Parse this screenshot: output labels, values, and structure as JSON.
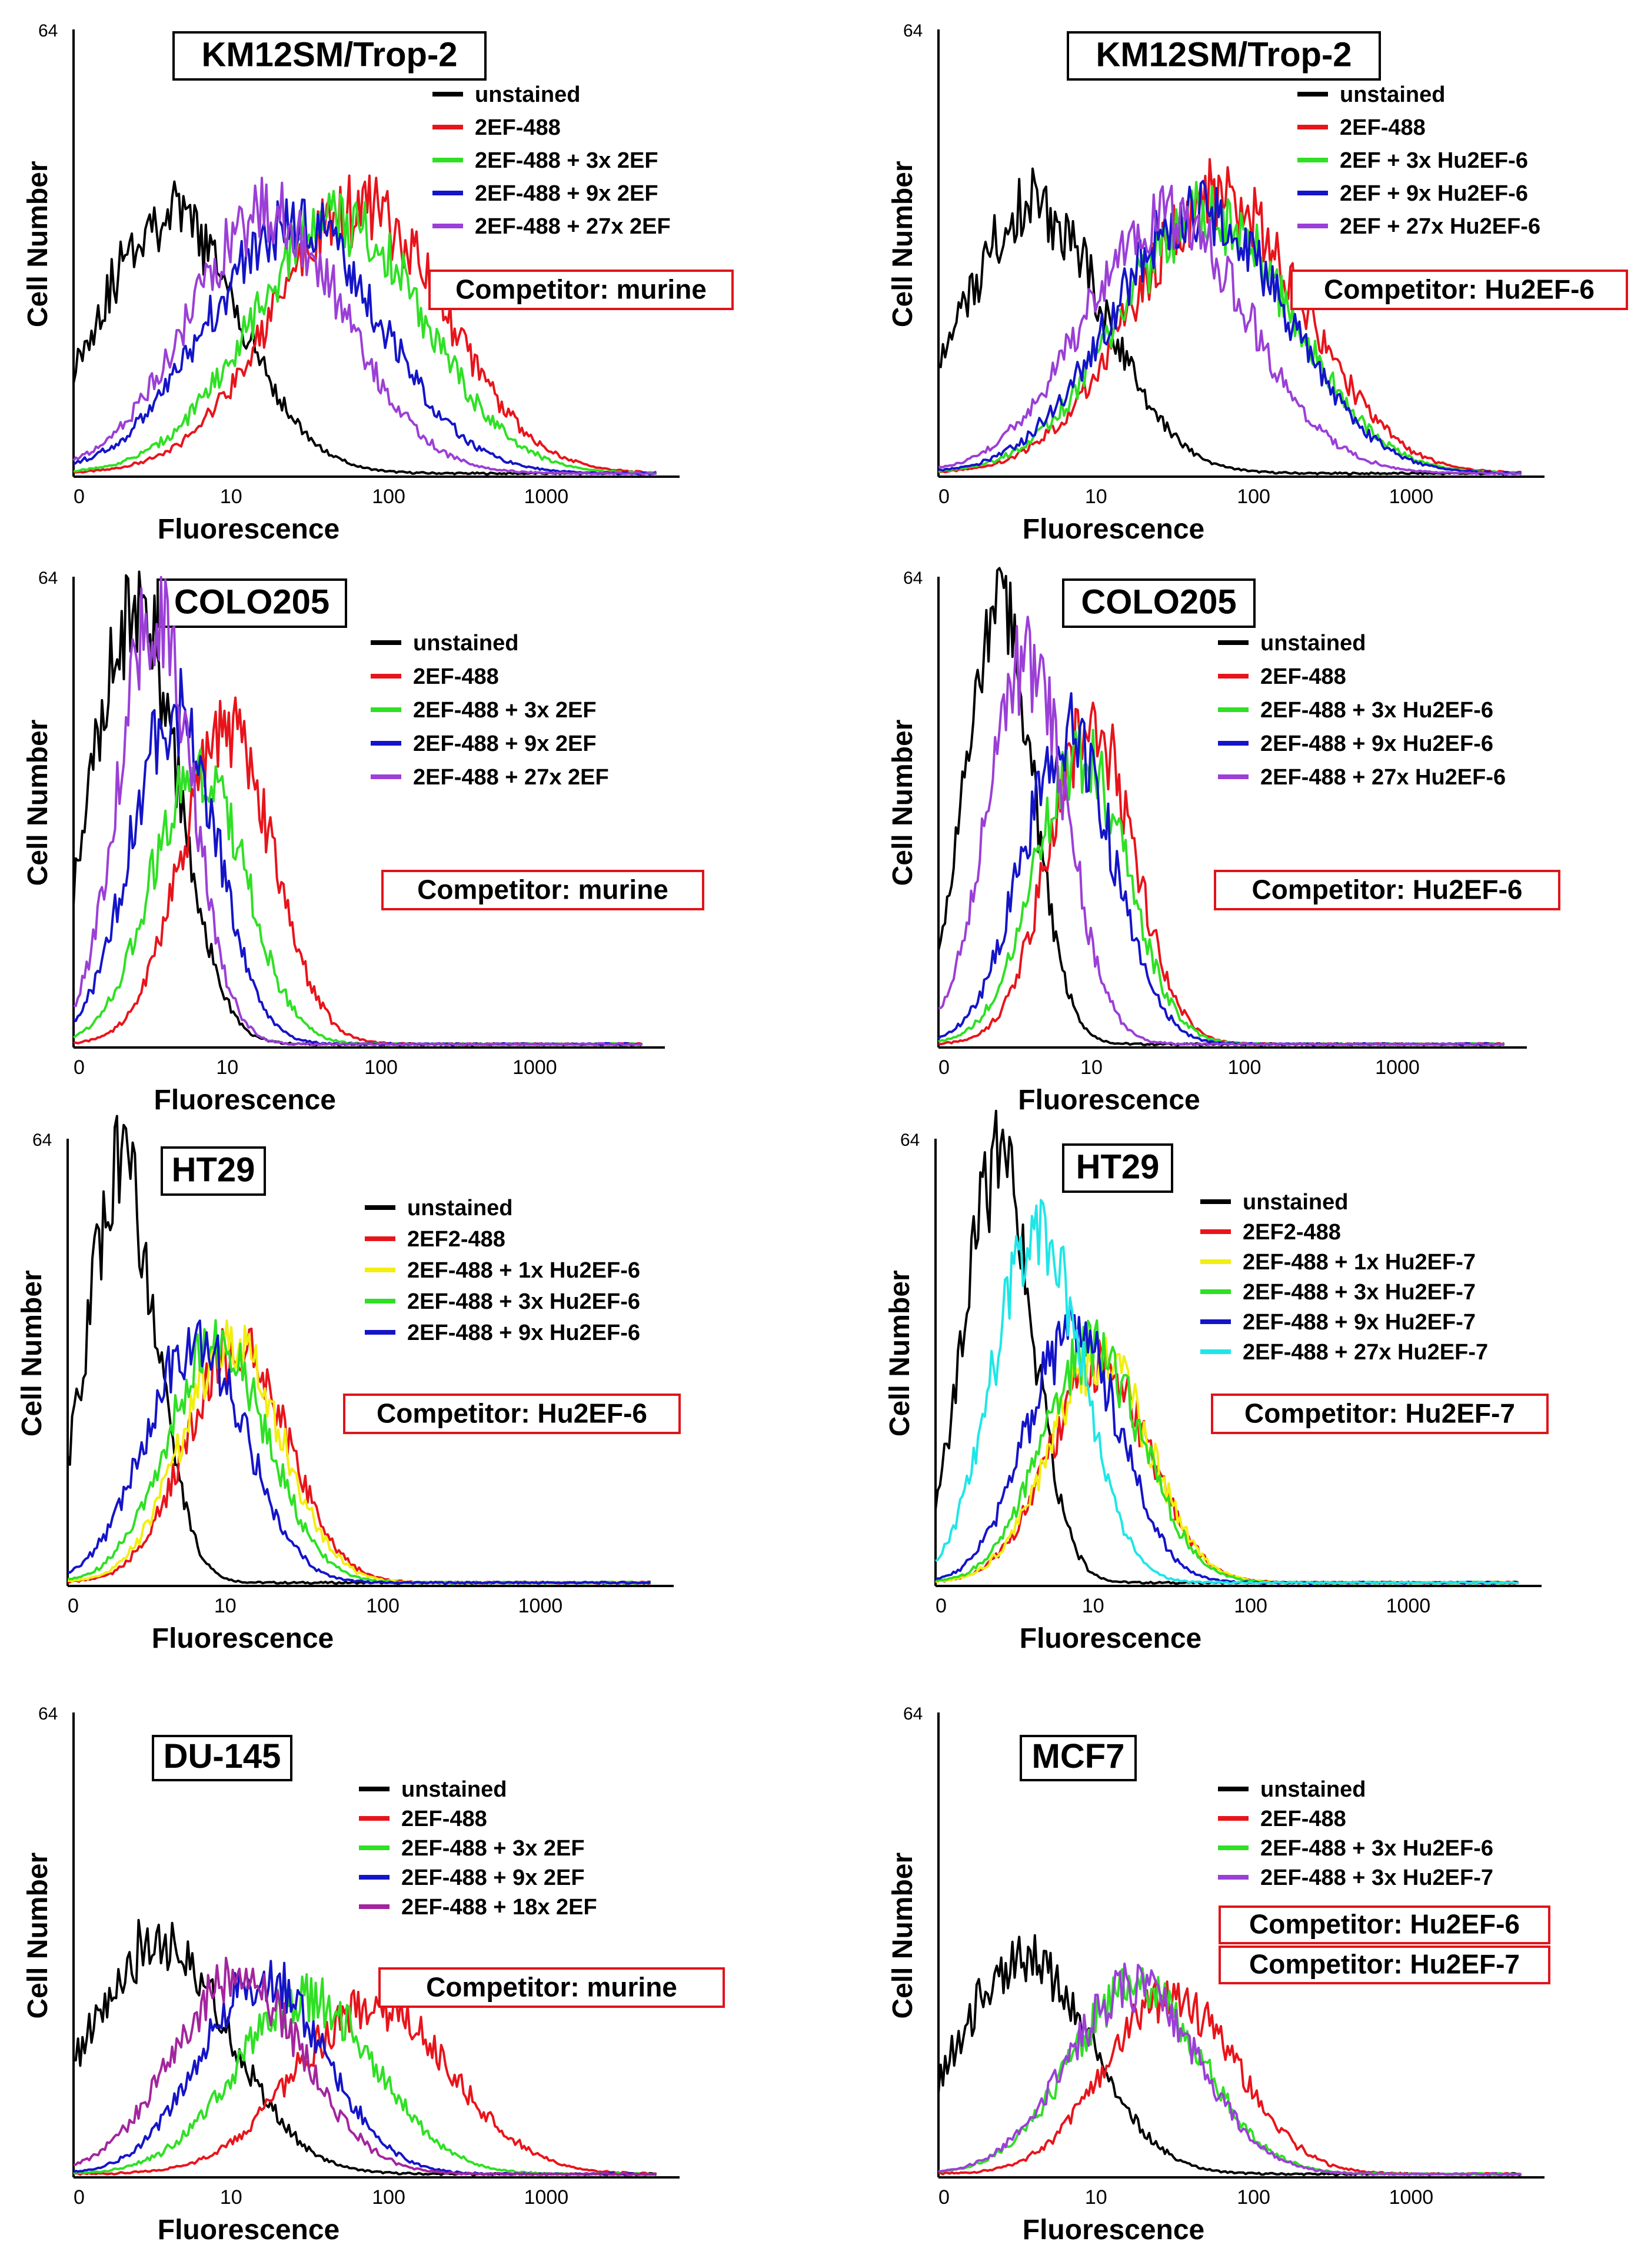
{
  "figure": {
    "shared_axis": {
      "ylabel": "Cell Number",
      "xlabel": "Fluorescence",
      "ymax_label": "64",
      "xticks": [
        "0",
        "10",
        "100",
        "1000"
      ]
    }
  },
  "colors": {
    "unstained": "#000000",
    "red": "#e8141b",
    "green": "#2fe024",
    "blue": "#1414c8",
    "purple": "#9b3fd6",
    "yellow": "#f2ee10",
    "cyan": "#1fe6e6",
    "competitor_box_border": "#e0141b"
  },
  "chart_data": [
    {
      "type": "line",
      "title": "KM12SM/Trop-2",
      "competitor": [
        "Competitor: murine"
      ],
      "xlabel": "Fluorescence",
      "ylabel": "Cell Number",
      "x_scale": "log",
      "xlim": [
        1,
        5000
      ],
      "ylim": [
        0,
        64
      ],
      "series": [
        {
          "name": "unstained",
          "color": "#000000",
          "peak": 4,
          "height": 0.58,
          "width": 0.45
        },
        {
          "name": "2EF-488",
          "color": "#e8141b",
          "peak": 65,
          "height": 0.59,
          "width": 0.55
        },
        {
          "name": "2EF-488 + 3x 2EF",
          "color": "#2fe024",
          "peak": 48,
          "height": 0.57,
          "width": 0.55
        },
        {
          "name": "2EF-488 + 9x 2EF",
          "color": "#1414c8",
          "peak": 25,
          "height": 0.56,
          "width": 0.55
        },
        {
          "name": "2EF-488 + 27x 2EF",
          "color": "#9b3fd6",
          "peak": 17,
          "height": 0.58,
          "width": 0.5
        }
      ]
    },
    {
      "type": "line",
      "title": "KM12SM/Trop-2",
      "competitor": [
        "Competitor: Hu2EF-6"
      ],
      "xlabel": "Fluorescence",
      "ylabel": "Cell Number",
      "x_scale": "log",
      "xlim": [
        1,
        5000
      ],
      "ylim": [
        0,
        64
      ],
      "series": [
        {
          "name": "unstained",
          "color": "#000000",
          "peak": 4,
          "height": 0.6,
          "width": 0.45
        },
        {
          "name": "2EF-488",
          "color": "#e8141b",
          "peak": 60,
          "height": 0.62,
          "width": 0.55
        },
        {
          "name": "2EF + 3x Hu2EF-6",
          "color": "#2fe024",
          "peak": 50,
          "height": 0.58,
          "width": 0.55
        },
        {
          "name": "2EF + 9x Hu2EF-6",
          "color": "#1414c8",
          "peak": 45,
          "height": 0.59,
          "width": 0.55
        },
        {
          "name": "2EF + 27x Hu2EF-6",
          "color": "#9b3fd6",
          "peak": 28,
          "height": 0.58,
          "width": 0.52
        }
      ]
    },
    {
      "type": "line",
      "title": "COLO205",
      "competitor": [
        "Competitor: murine"
      ],
      "xlabel": "Fluorescence",
      "ylabel": "Cell Number",
      "x_scale": "log",
      "xlim": [
        1,
        5000
      ],
      "ylim": [
        0,
        64
      ],
      "series": [
        {
          "name": "unstained",
          "color": "#000000",
          "peak": 2.5,
          "height": 0.93,
          "width": 0.28
        },
        {
          "name": "2EF-488",
          "color": "#e8141b",
          "peak": 10,
          "height": 0.66,
          "width": 0.3
        },
        {
          "name": "2EF-488 + 3x 2EF",
          "color": "#2fe024",
          "peak": 6.5,
          "height": 0.6,
          "width": 0.3
        },
        {
          "name": "2EF-488 + 9x 2EF",
          "color": "#1414c8",
          "peak": 4.5,
          "height": 0.71,
          "width": 0.28
        },
        {
          "name": "2EF-488 + 27x 2EF",
          "color": "#9b3fd6",
          "peak": 3.4,
          "height": 0.92,
          "width": 0.24
        }
      ]
    },
    {
      "type": "line",
      "title": "COLO205",
      "competitor": [
        "Competitor: Hu2EF-6"
      ],
      "xlabel": "Fluorescence",
      "ylabel": "Cell Number",
      "x_scale": "log",
      "xlim": [
        1,
        5000
      ],
      "ylim": [
        0,
        64
      ],
      "series": [
        {
          "name": "unstained",
          "color": "#000000",
          "peak": 2.5,
          "height": 0.93,
          "width": 0.22
        },
        {
          "name": "2EF-488",
          "color": "#e8141b",
          "peak": 10,
          "height": 0.68,
          "width": 0.28
        },
        {
          "name": "2EF-488 + 3x Hu2EF-6",
          "color": "#2fe024",
          "peak": 8.5,
          "height": 0.62,
          "width": 0.3
        },
        {
          "name": "2EF-488 + 9x Hu2EF-6",
          "color": "#1414c8",
          "peak": 7,
          "height": 0.66,
          "width": 0.3
        },
        {
          "name": "2EF-488 + 27x Hu2EF-6",
          "color": "#9b3fd6",
          "peak": 3.8,
          "height": 0.82,
          "width": 0.26
        }
      ]
    },
    {
      "type": "line",
      "title": "HT29",
      "competitor": [
        "Competitor: Hu2EF-6"
      ],
      "xlabel": "Fluorescence",
      "ylabel": "Cell Number",
      "x_scale": "log",
      "xlim": [
        1,
        5000
      ],
      "ylim": [
        0,
        64
      ],
      "series": [
        {
          "name": "unstained",
          "color": "#000000",
          "peak": 2.2,
          "height": 0.93,
          "width": 0.22
        },
        {
          "name": "2EF2-488",
          "color": "#e8141b",
          "peak": 12,
          "height": 0.53,
          "width": 0.32
        },
        {
          "name": "2EF-488 + 1x Hu2EF-6",
          "color": "#f2ee10",
          "peak": 11,
          "height": 0.53,
          "width": 0.32
        },
        {
          "name": "2EF-488 + 3x Hu2EF-6",
          "color": "#2fe024",
          "peak": 9,
          "height": 0.54,
          "width": 0.32
        },
        {
          "name": "2EF-488 + 9x Hu2EF-6",
          "color": "#1414c8",
          "peak": 6.5,
          "height": 0.54,
          "width": 0.32
        }
      ]
    },
    {
      "type": "line",
      "title": "HT29",
      "competitor": [
        "Competitor: Hu2EF-7"
      ],
      "xlabel": "Fluorescence",
      "ylabel": "Cell Number",
      "x_scale": "log",
      "xlim": [
        1,
        5000
      ],
      "ylim": [
        0,
        64
      ],
      "series": [
        {
          "name": "unstained",
          "color": "#000000",
          "peak": 2.5,
          "height": 0.93,
          "width": 0.22
        },
        {
          "name": "2EF2-488",
          "color": "#e8141b",
          "peak": 11,
          "height": 0.48,
          "width": 0.32
        },
        {
          "name": "2EF-488 + 1x Hu2EF-7",
          "color": "#f2ee10",
          "peak": 11,
          "height": 0.5,
          "width": 0.32
        },
        {
          "name": "2EF-488 + 3x Hu2EF-7",
          "color": "#2fe024",
          "peak": 10,
          "height": 0.52,
          "width": 0.32
        },
        {
          "name": "2EF-488 + 9x Hu2EF-7",
          "color": "#1414c8",
          "peak": 7.5,
          "height": 0.56,
          "width": 0.3
        },
        {
          "name": "2EF-488 + 27x Hu2EF-7",
          "color": "#1fe6e6",
          "peak": 4.5,
          "height": 0.8,
          "width": 0.28
        }
      ]
    },
    {
      "type": "line",
      "title": "DU-145",
      "competitor": [
        "Competitor: murine"
      ],
      "xlabel": "Fluorescence",
      "ylabel": "Cell Number",
      "x_scale": "log",
      "xlim": [
        1,
        5000
      ],
      "ylim": [
        0,
        64
      ],
      "series": [
        {
          "name": "unstained",
          "color": "#000000",
          "peak": 3.5,
          "height": 0.5,
          "width": 0.45
        },
        {
          "name": "2EF-488",
          "color": "#e8141b",
          "peak": 80,
          "height": 0.36,
          "width": 0.5
        },
        {
          "name": "2EF-488 + 3x 2EF",
          "color": "#2fe024",
          "peak": 30,
          "height": 0.38,
          "width": 0.45
        },
        {
          "name": "2EF-488 + 9x 2EF",
          "color": "#1414c8",
          "peak": 16,
          "height": 0.42,
          "width": 0.4
        },
        {
          "name": "2EF-488 + 18x 2EF",
          "color": "#a3259e",
          "peak": 11,
          "height": 0.42,
          "width": 0.42
        }
      ]
    },
    {
      "type": "line",
      "title": "MCF7",
      "competitor": [
        "Competitor: Hu2EF-6",
        "Competitor: Hu2EF-7"
      ],
      "xlabel": "Fluorescence",
      "ylabel": "Cell Number",
      "x_scale": "log",
      "xlim": [
        1,
        5000
      ],
      "ylim": [
        0,
        64
      ],
      "series": [
        {
          "name": "unstained",
          "color": "#000000",
          "peak": 3.5,
          "height": 0.47,
          "width": 0.42
        },
        {
          "name": "2EF-488",
          "color": "#e8141b",
          "peak": 30,
          "height": 0.38,
          "width": 0.42
        },
        {
          "name": "2EF-488 + 3x Hu2EF-6",
          "color": "#2fe024",
          "peak": 18,
          "height": 0.4,
          "width": 0.42
        },
        {
          "name": "2EF-488 + 3x Hu2EF-7",
          "color": "#9b3fd6",
          "peak": 17,
          "height": 0.4,
          "width": 0.42
        }
      ]
    }
  ]
}
